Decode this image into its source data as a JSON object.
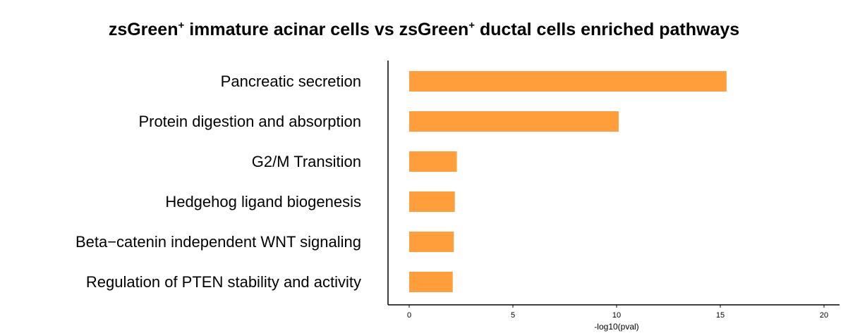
{
  "chart_data": {
    "type": "bar",
    "orientation": "horizontal",
    "title": {
      "part1": "zsGreen",
      "sup1": "+",
      "part2": " immature acinar cells vs zsGreen",
      "sup2": "+",
      "part3": " ductal cells enriched pathways"
    },
    "xlabel": "-log10(pval)",
    "ylabel": "",
    "categories": [
      "Pancreatic secretion",
      "Protein digestion and absorption",
      "G2/M Transition",
      "Hedgehog ligand biogenesis",
      "Beta−catenin independent WNT signaling",
      "Regulation of PTEN stability and activity"
    ],
    "values": [
      15.3,
      10.1,
      2.3,
      2.2,
      2.15,
      2.1
    ],
    "xlim": [
      -1,
      20.5
    ],
    "xticks": [
      0,
      5,
      10,
      15,
      20
    ],
    "bar_color": "#FF9E3A",
    "grid": false,
    "legend": "none"
  }
}
